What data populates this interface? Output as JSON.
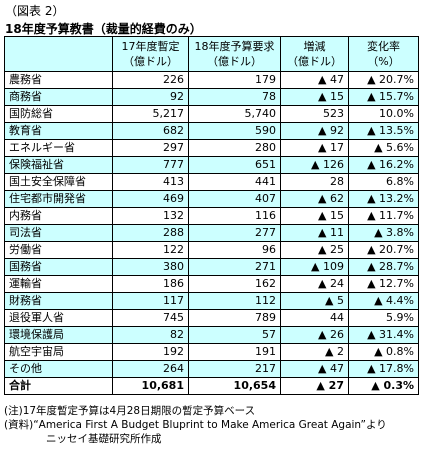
{
  "figure_label": "（図表 2）",
  "title": "18年度予算教書（裁量的経費のみ）",
  "headers": {
    "col1": "",
    "col2_line1": "17年度暫定",
    "col2_line2": "（億ドル）",
    "col3_line1": "18年度予算要求",
    "col3_line2": "（億ドル）",
    "col4_line1": "増減",
    "col4_line2": "（億ドル）",
    "col5_line1": "変化率",
    "col5_line2": "（%）"
  },
  "rows": [
    {
      "name": "農務省",
      "fy17": "226",
      "fy18": "179",
      "change": "▲ 47",
      "rate": "▲ 20.7%"
    },
    {
      "name": "商務省",
      "fy17": "92",
      "fy18": "78",
      "change": "▲ 15",
      "rate": "▲ 15.7%"
    },
    {
      "name": "国防総省",
      "fy17": "5,217",
      "fy18": "5,740",
      "change": "523",
      "rate": "10.0%"
    },
    {
      "name": "教育省",
      "fy17": "682",
      "fy18": "590",
      "change": "▲ 92",
      "rate": "▲ 13.5%"
    },
    {
      "name": "エネルギー省",
      "fy17": "297",
      "fy18": "280",
      "change": "▲ 17",
      "rate": "▲ 5.6%"
    },
    {
      "name": "保険福祉省",
      "fy17": "777",
      "fy18": "651",
      "change": "▲ 126",
      "rate": "▲ 16.2%"
    },
    {
      "name": "国土安全保障省",
      "fy17": "413",
      "fy18": "441",
      "change": "28",
      "rate": "6.8%"
    },
    {
      "name": "住宅都市開発省",
      "fy17": "469",
      "fy18": "407",
      "change": "▲ 62",
      "rate": "▲ 13.2%"
    },
    {
      "name": "内務省",
      "fy17": "132",
      "fy18": "116",
      "change": "▲ 15",
      "rate": "▲ 11.7%"
    },
    {
      "name": "司法省",
      "fy17": "288",
      "fy18": "277",
      "change": "▲ 11",
      "rate": "▲ 3.8%"
    },
    {
      "name": "労働省",
      "fy17": "122",
      "fy18": "96",
      "change": "▲ 25",
      "rate": "▲ 20.7%"
    },
    {
      "name": "国務省",
      "fy17": "380",
      "fy18": "271",
      "change": "▲ 109",
      "rate": "▲ 28.7%"
    },
    {
      "name": "運輸省",
      "fy17": "186",
      "fy18": "162",
      "change": "▲ 24",
      "rate": "▲ 12.7%"
    },
    {
      "name": "財務省",
      "fy17": "117",
      "fy18": "112",
      "change": "▲ 5",
      "rate": "▲ 4.4%"
    },
    {
      "name": "退役軍人省",
      "fy17": "745",
      "fy18": "789",
      "change": "44",
      "rate": "5.9%"
    },
    {
      "name": "環境保護局",
      "fy17": "82",
      "fy18": "57",
      "change": "▲ 26",
      "rate": "▲ 31.4%"
    },
    {
      "name": "航空宇宙局",
      "fy17": "192",
      "fy18": "191",
      "change": "▲ 2",
      "rate": "▲ 0.8%"
    },
    {
      "name": "その他",
      "fy17": "264",
      "fy18": "217",
      "change": "▲ 47",
      "rate": "▲ 17.8%"
    }
  ],
  "total": {
    "name": "合計",
    "fy17": "10,681",
    "fy18": "10,654",
    "change": "▲ 27",
    "rate": "▲ 0.3%"
  },
  "notes": {
    "note": "(注)17年度暫定予算は4月28日期限の暫定予算ベース",
    "source_line1": "(資料)“America First A Budget Bluprint to Make America Great Again”より",
    "source_line2": "ニッセイ基礎研究所作成"
  }
}
